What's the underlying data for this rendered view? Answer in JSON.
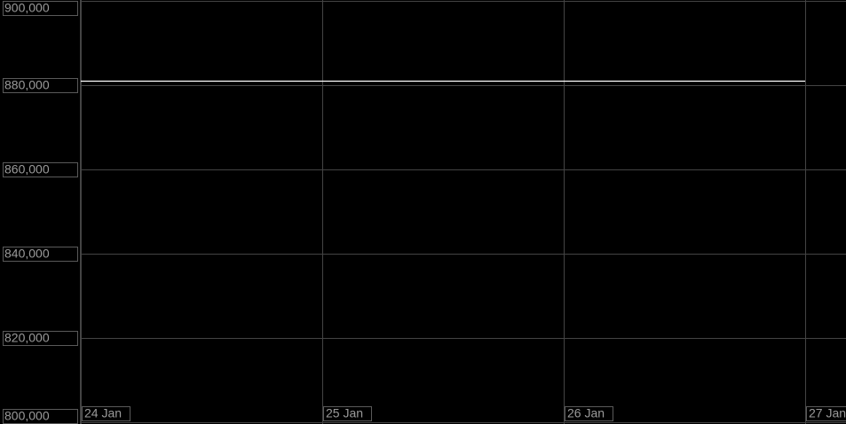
{
  "chart_data": {
    "type": "line",
    "x": [
      "24 Jan",
      "25 Jan",
      "26 Jan",
      "27 Jan"
    ],
    "series": [
      {
        "color": "#ffffff",
        "values": [
          881000,
          881000,
          881000,
          881000
        ]
      }
    ],
    "ylim": [
      800000,
      900000
    ],
    "yticks": [
      {
        "value": 800000,
        "label": "800,000"
      },
      {
        "value": 820000,
        "label": "820,000"
      },
      {
        "value": 840000,
        "label": "840,000"
      },
      {
        "value": 860000,
        "label": "860,000"
      },
      {
        "value": 880000,
        "label": "880,000"
      },
      {
        "value": 900000,
        "label": "900,000"
      }
    ],
    "grid": true
  }
}
